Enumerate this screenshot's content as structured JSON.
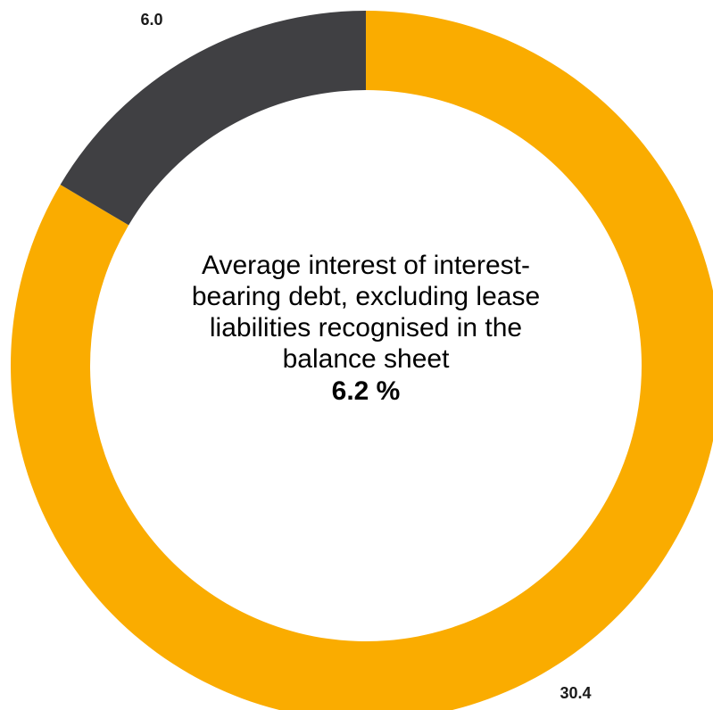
{
  "chart_data": {
    "type": "pie",
    "style": "donut",
    "slices": [
      {
        "label": "",
        "value": 30.4,
        "display": "30.4",
        "color": "#FAAC00"
      },
      {
        "label": "",
        "value": 6.0,
        "display": "6.0",
        "color": "#404043"
      }
    ],
    "center": {
      "lines": [
        "Average interest of interest-",
        "bearing debt, excluding lease",
        "liabilities recognised in the",
        "balance sheet"
      ],
      "value": "6.2 %"
    }
  }
}
